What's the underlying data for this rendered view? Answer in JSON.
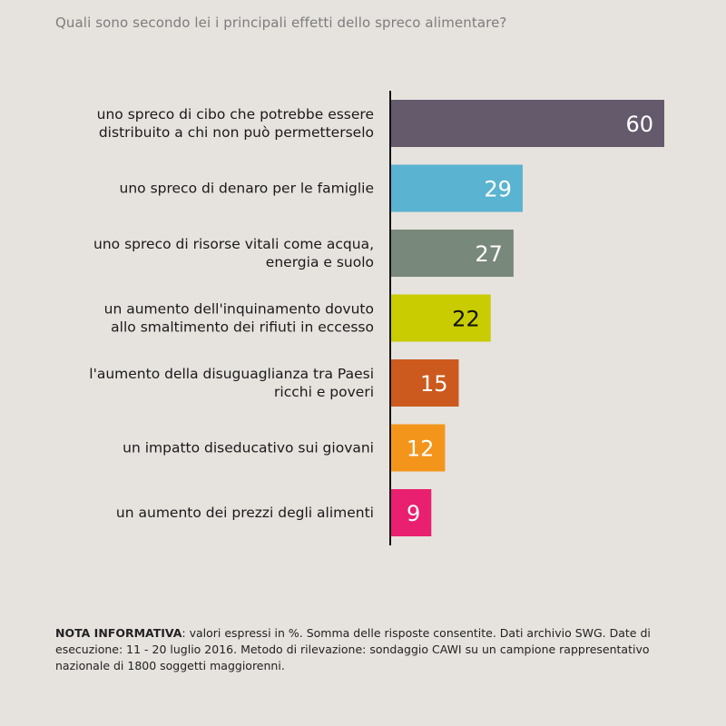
{
  "title": "Quali sono secondo lei i principali effetti dello spreco alimentare?",
  "chart_data": {
    "type": "bar",
    "orientation": "horizontal",
    "title": "Quali sono secondo lei i principali effetti dello spreco alimentare?",
    "categories": [
      [
        "uno spreco di cibo che potrebbe essere",
        "distribuito a chi non può permetterselo"
      ],
      [
        "uno spreco di denaro per le famiglie"
      ],
      [
        "uno spreco di risorse vitali come acqua,",
        "energia e suolo"
      ],
      [
        "un aumento dell'inquinamento dovuto",
        "allo smaltimento dei rifiuti in eccesso"
      ],
      [
        "l'aumento della disuguaglianza tra Paesi",
        "ricchi e poveri"
      ],
      [
        "un impatto diseducativo sui giovani"
      ],
      [
        "un aumento dei prezzi degli alimenti"
      ]
    ],
    "values": [
      60,
      29,
      27,
      22,
      15,
      12,
      9
    ],
    "data_labels": [
      "60",
      "29",
      "27",
      "22",
      "15",
      "12",
      "9"
    ],
    "colors": [
      "#655a6c",
      "#5ab3d0",
      "#78887a",
      "#c8cc00",
      "#cc5a1e",
      "#f4951b",
      "#e8206f"
    ],
    "label_colors": [
      "#ffffff",
      "#ffffff",
      "#ffffff",
      "#111111",
      "#ffffff",
      "#ffffff",
      "#ffffff"
    ],
    "xlim": [
      0,
      60
    ],
    "xlabel": "",
    "ylabel": "",
    "grid": false,
    "legend": "none"
  },
  "note": {
    "bold": "NOTA INFORMATIVA",
    "text": ": valori espressi in %. Somma delle risposte consentite. Dati archivio SWG. Date di esecuzione: 11 - 20 luglio 2016. Metodo di rilevazione: sondaggio CAWI su un campione rappresentativo nazionale di 1800 soggetti maggiorenni."
  }
}
